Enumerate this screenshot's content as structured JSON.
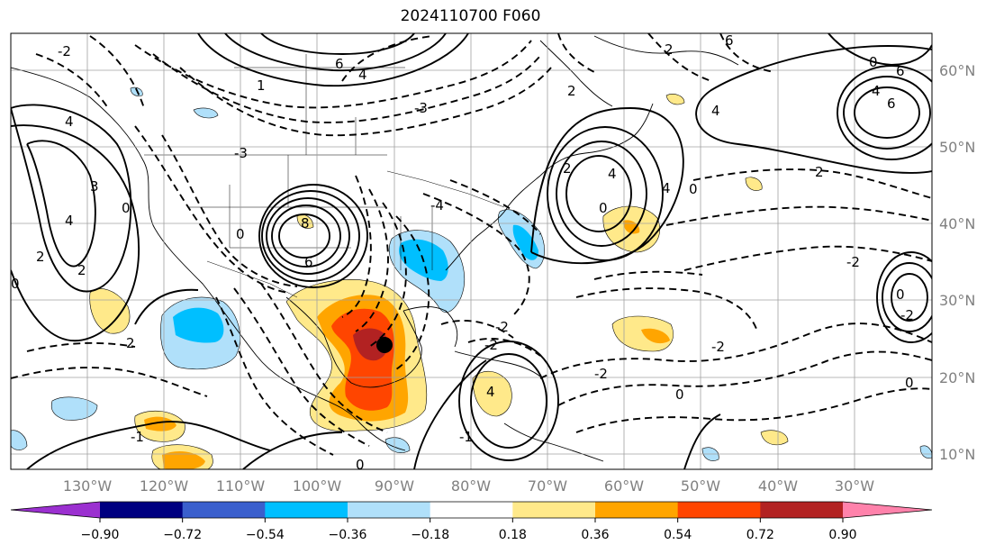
{
  "figure": {
    "title": "2024110700 F060"
  },
  "axes": {
    "lon_labels": [
      "130°W",
      "120°W",
      "110°W",
      "100°W",
      "90°W",
      "80°W",
      "70°W",
      "60°W",
      "50°W",
      "40°W",
      "30°W"
    ],
    "lat_labels": [
      "60°N",
      "50°N",
      "40°N",
      "30°N",
      "20°N",
      "10°N"
    ]
  },
  "colorbar": {
    "tick_labels": [
      "−0.90",
      "−0.72",
      "−0.54",
      "−0.36",
      "−0.18",
      "0.18",
      "0.36",
      "0.54",
      "0.72",
      "0.90"
    ],
    "under_color": "#9b30d0",
    "colors": [
      "#000080",
      "#3a5fcd",
      "#00bfff",
      "#b0e0fa",
      "#ffffff",
      "#ffe98a",
      "#ffa500",
      "#ff4500",
      "#b22222"
    ],
    "over_color": "#ff82ab"
  },
  "colors": {
    "contour": "#000000",
    "grid": "#a0a0a0",
    "coast": "#000000"
  },
  "contour_labels": [
    "6",
    "4",
    "2",
    "0",
    "-2",
    "-3",
    "-4",
    "-1",
    "3",
    "8",
    "1"
  ],
  "marker": "storm-center-dot"
}
